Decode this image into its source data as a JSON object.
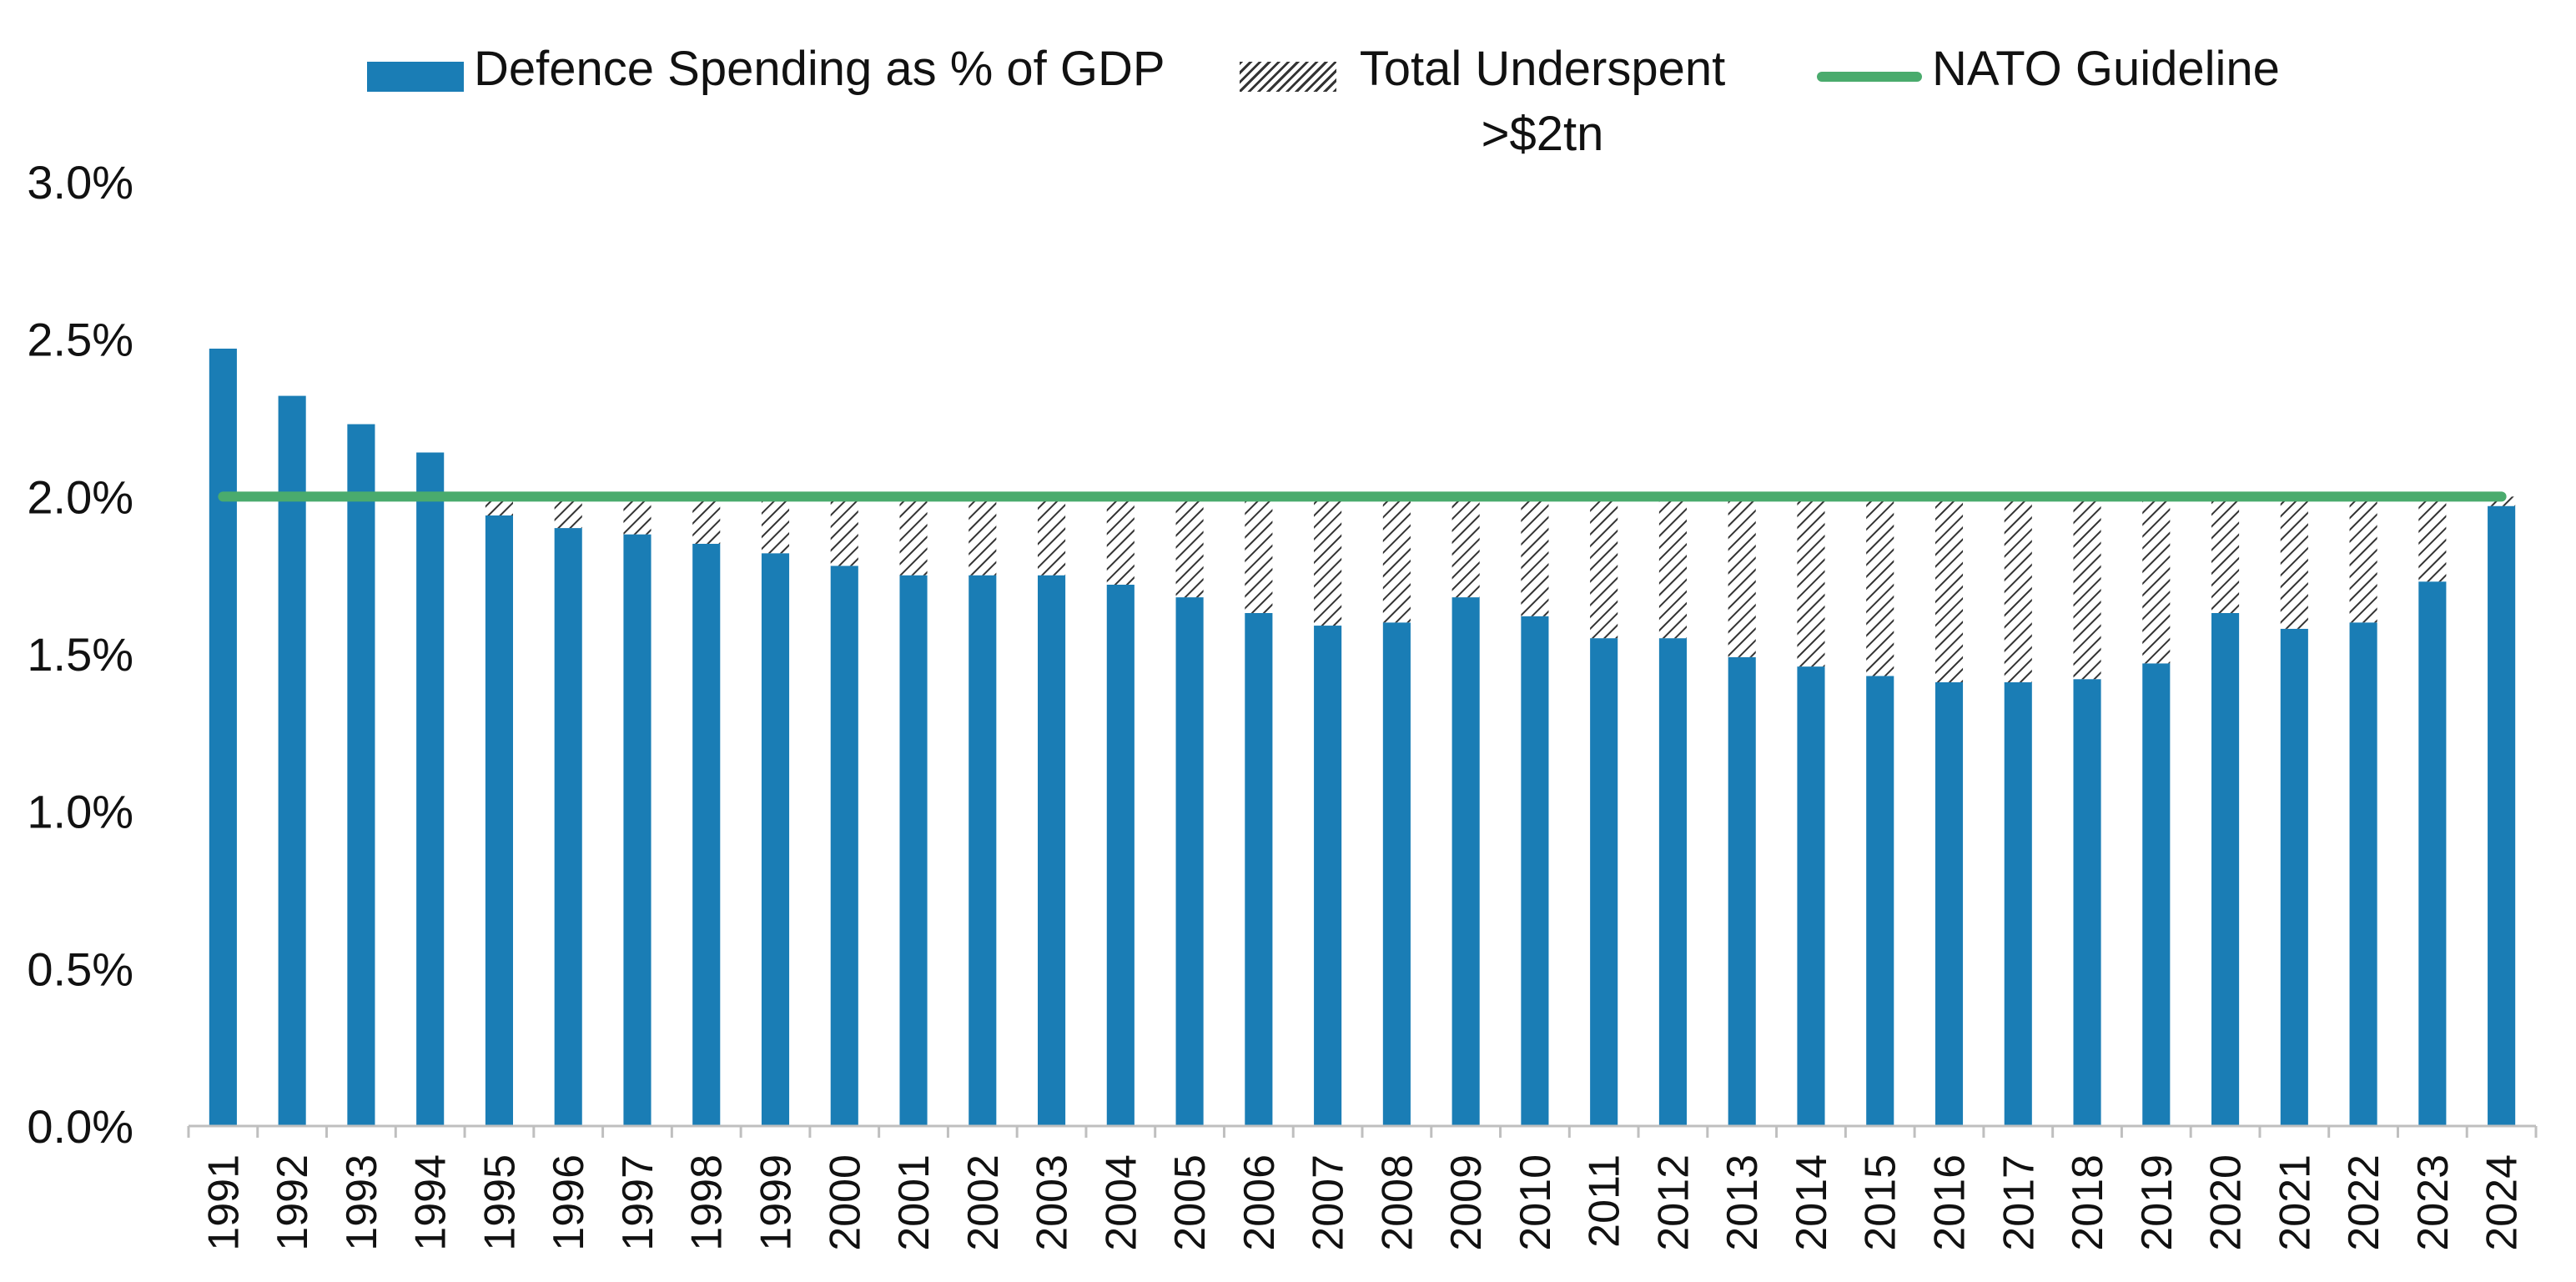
{
  "colors": {
    "bar": "#1a7db5",
    "hatch": "#333333",
    "guideline": "#4aab6d",
    "axis": "#bfbfbf",
    "text": "#111111"
  },
  "legend": {
    "bar_label": "Defence Spending as % of GDP",
    "hatch_label": "Total Underspent >$2tn",
    "line_label": "NATO Guideline"
  },
  "chart_data": {
    "type": "bar",
    "title": "",
    "xlabel": "",
    "ylabel": "",
    "ylim": [
      0,
      3.0
    ],
    "y_ticks": [
      "0.0%",
      "0.5%",
      "1.0%",
      "1.5%",
      "2.0%",
      "2.5%",
      "3.0%"
    ],
    "y_tick_values": [
      0,
      0.5,
      1.0,
      1.5,
      2.0,
      2.5,
      3.0
    ],
    "grid": false,
    "legend_position": "top",
    "categories": [
      "1991",
      "1992",
      "1993",
      "1994",
      "1995",
      "1996",
      "1997",
      "1998",
      "1999",
      "2000",
      "2001",
      "2002",
      "2003",
      "2004",
      "2005",
      "2006",
      "2007",
      "2008",
      "2009",
      "2010",
      "2011",
      "2012",
      "2013",
      "2014",
      "2015",
      "2016",
      "2017",
      "2018",
      "2019",
      "2020",
      "2021",
      "2022",
      "2023",
      "2024"
    ],
    "series": [
      {
        "name": "Defence Spending as % of GDP",
        "type": "bar",
        "values": [
          2.47,
          2.32,
          2.23,
          2.14,
          1.94,
          1.9,
          1.88,
          1.85,
          1.82,
          1.78,
          1.75,
          1.75,
          1.75,
          1.72,
          1.68,
          1.63,
          1.59,
          1.6,
          1.68,
          1.62,
          1.55,
          1.55,
          1.49,
          1.46,
          1.43,
          1.41,
          1.41,
          1.42,
          1.47,
          1.63,
          1.58,
          1.6,
          1.73,
          1.97
        ]
      },
      {
        "name": "Total Underspent >$2tn",
        "type": "stacked-bar-hatched",
        "values": [
          0,
          0,
          0,
          0,
          0.06,
          0.1,
          0.12,
          0.15,
          0.18,
          0.22,
          0.25,
          0.25,
          0.25,
          0.28,
          0.32,
          0.37,
          0.41,
          0.4,
          0.32,
          0.38,
          0.45,
          0.45,
          0.51,
          0.54,
          0.57,
          0.59,
          0.59,
          0.58,
          0.53,
          0.37,
          0.42,
          0.4,
          0.27,
          0.03
        ]
      },
      {
        "name": "NATO Guideline",
        "type": "line",
        "values": [
          2.0,
          2.0,
          2.0,
          2.0,
          2.0,
          2.0,
          2.0,
          2.0,
          2.0,
          2.0,
          2.0,
          2.0,
          2.0,
          2.0,
          2.0,
          2.0,
          2.0,
          2.0,
          2.0,
          2.0,
          2.0,
          2.0,
          2.0,
          2.0,
          2.0,
          2.0,
          2.0,
          2.0,
          2.0,
          2.0,
          2.0,
          2.0,
          2.0,
          2.0
        ]
      }
    ]
  }
}
